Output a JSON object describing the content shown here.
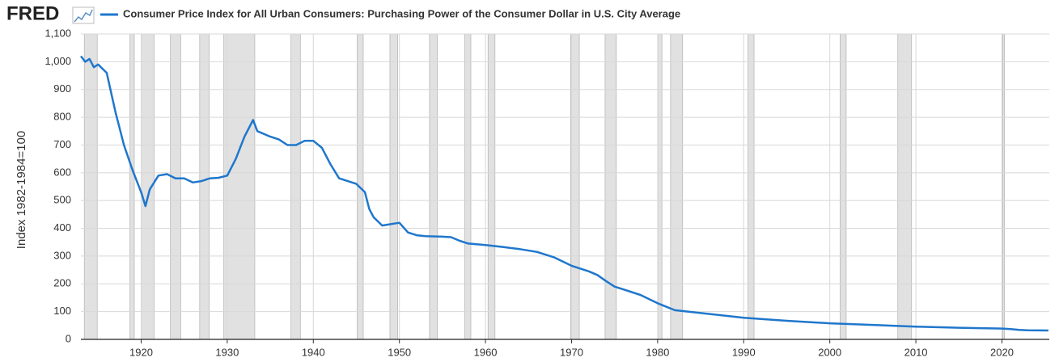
{
  "brand": "FRED",
  "chart_data": {
    "type": "line",
    "y_label": "Index 1982-1984=100",
    "x": [
      1913,
      1913.5,
      1914,
      1914.5,
      1915,
      1916,
      1917,
      1918,
      1919,
      1920,
      1920.5,
      1921,
      1922,
      1923,
      1924,
      1925,
      1926,
      1927,
      1928,
      1929,
      1930,
      1931,
      1932,
      1933,
      1933.5,
      1935,
      1936,
      1937,
      1938,
      1939,
      1940,
      1941,
      1942,
      1943,
      1944,
      1945,
      1946,
      1946.5,
      1947,
      1948,
      1949,
      1950,
      1951,
      1952,
      1953,
      1955,
      1956,
      1957,
      1958,
      1960,
      1962,
      1964,
      1966,
      1968,
      1970,
      1972,
      1973,
      1974,
      1975,
      1976,
      1978,
      1980,
      1982,
      1985,
      1990,
      1995,
      2000,
      2005,
      2010,
      2015,
      2020,
      2021,
      2022,
      2023,
      2025.4
    ],
    "series": [
      {
        "name": "Consumer Price Index for All Urban Consumers: Purchasing Power of the Consumer Dollar in U.S. City Average",
        "color": "#1f77cc",
        "values": [
          1020,
          1000,
          1010,
          980,
          990,
          960,
          820,
          700,
          610,
          530,
          480,
          540,
          590,
          595,
          580,
          580,
          565,
          570,
          580,
          582,
          590,
          650,
          730,
          790,
          750,
          730,
          720,
          700,
          700,
          715,
          715,
          690,
          630,
          580,
          570,
          560,
          530,
          470,
          440,
          410,
          415,
          420,
          385,
          375,
          372,
          370,
          368,
          355,
          345,
          340,
          333,
          325,
          315,
          295,
          265,
          245,
          232,
          210,
          190,
          180,
          160,
          130,
          105,
          95,
          78,
          67,
          58,
          52,
          46,
          42,
          39,
          37,
          34,
          33,
          32
        ]
      }
    ],
    "recessions": [
      [
        1913.4,
        1914.9
      ],
      [
        1918.7,
        1919.2
      ],
      [
        1920,
        1921.5
      ],
      [
        1923.4,
        1924.6
      ],
      [
        1926.8,
        1927.9
      ],
      [
        1929.6,
        1933.2
      ],
      [
        1937.4,
        1938.5
      ],
      [
        1945.1,
        1945.8
      ],
      [
        1948.9,
        1949.8
      ],
      [
        1953.5,
        1954.4
      ],
      [
        1957.6,
        1958.3
      ],
      [
        1960.3,
        1961.1
      ],
      [
        1969.9,
        1970.9
      ],
      [
        1973.9,
        1975.2
      ],
      [
        1980,
        1980.5
      ],
      [
        1981.5,
        1982.9
      ],
      [
        1990.5,
        1991.2
      ],
      [
        2001.2,
        2001.9
      ],
      [
        2007.9,
        2009.5
      ],
      [
        2020.1,
        2020.3
      ]
    ],
    "xlim": [
      1913,
      2025.5
    ],
    "xticks": [
      1920,
      1930,
      1940,
      1950,
      1960,
      1970,
      1980,
      1990,
      2000,
      2010,
      2020
    ],
    "ylim": [
      0,
      1100
    ],
    "yticks": [
      0,
      100,
      200,
      300,
      400,
      500,
      600,
      700,
      800,
      900,
      {
        "value": 1000,
        "label": "1,000"
      },
      {
        "value": 1100,
        "label": "1,100"
      }
    ],
    "grid": true
  }
}
